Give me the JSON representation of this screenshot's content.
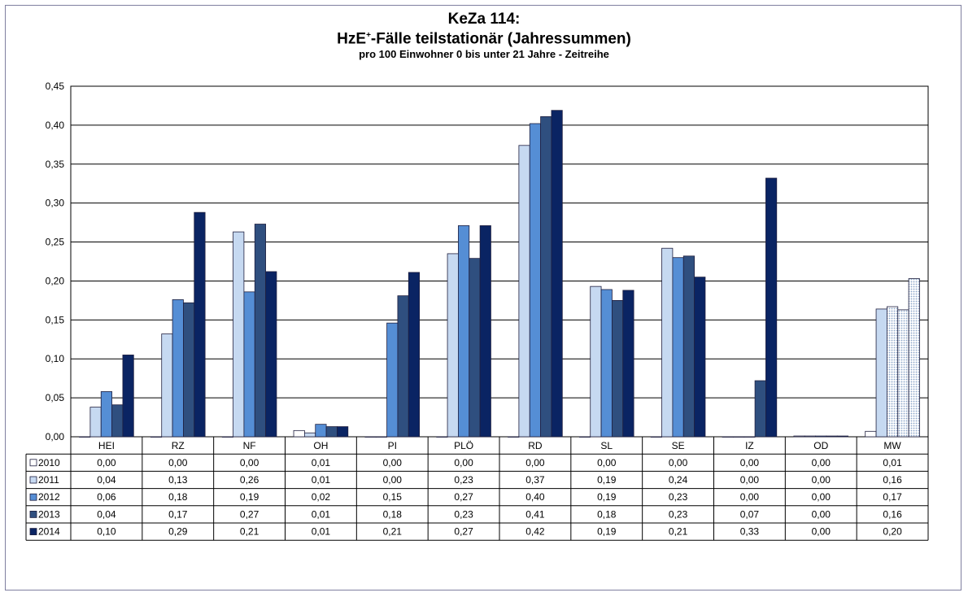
{
  "chart_data": {
    "type": "bar",
    "title": "KeZa 114:",
    "subtitle": "HzE",
    "subtitle_sup": "+",
    "subtitle_rest": "-Fälle teilstationär (Jahressummen)",
    "subtitle2": "pro 100 Einwohner 0 bis unter 21 Jahre - Zeitreihe",
    "categories": [
      "HEI",
      "RZ",
      "NF",
      "OH",
      "PI",
      "PLÖ",
      "RD",
      "SL",
      "SE",
      "IZ",
      "OD",
      "MW"
    ],
    "ylim": [
      0,
      0.45
    ],
    "yticks": [
      "0,00",
      "0,05",
      "0,10",
      "0,15",
      "0,20",
      "0,25",
      "0,30",
      "0,35",
      "0,40",
      "0,45"
    ],
    "grid": true,
    "legend": "data-table",
    "series": [
      {
        "name": "2010",
        "color": "#ffffff",
        "values": [
          0.0,
          0.0,
          0.0,
          0.008,
          0.0,
          0.0,
          0.0,
          0.0,
          0.0,
          0.0,
          0.001,
          0.007
        ],
        "labels": [
          "0,00",
          "0,00",
          "0,00",
          "0,01",
          "0,00",
          "0,00",
          "0,00",
          "0,00",
          "0,00",
          "0,00",
          "0,00",
          "0,01"
        ]
      },
      {
        "name": "2011",
        "color": "#c6d9f1",
        "values": [
          0.038,
          0.132,
          0.263,
          0.005,
          0.0,
          0.235,
          0.374,
          0.193,
          0.242,
          0.0,
          0.001,
          0.164
        ],
        "labels": [
          "0,04",
          "0,13",
          "0,26",
          "0,01",
          "0,00",
          "0,23",
          "0,37",
          "0,19",
          "0,24",
          "0,00",
          "0,00",
          "0,16"
        ]
      },
      {
        "name": "2012",
        "color": "#558ed5",
        "values": [
          0.058,
          0.176,
          0.186,
          0.016,
          0.146,
          0.271,
          0.402,
          0.189,
          0.23,
          0.0,
          0.001,
          0.167
        ],
        "labels": [
          "0,06",
          "0,18",
          "0,19",
          "0,02",
          "0,15",
          "0,27",
          "0,40",
          "0,19",
          "0,23",
          "0,00",
          "0,00",
          "0,17"
        ]
      },
      {
        "name": "2013",
        "color": "#2f4f7f",
        "values": [
          0.041,
          0.172,
          0.273,
          0.013,
          0.181,
          0.229,
          0.411,
          0.175,
          0.232,
          0.072,
          0.001,
          0.163
        ],
        "labels": [
          "0,04",
          "0,17",
          "0,27",
          "0,01",
          "0,18",
          "0,23",
          "0,41",
          "0,18",
          "0,23",
          "0,07",
          "0,00",
          "0,16"
        ]
      },
      {
        "name": "2014",
        "color": "#0a2463",
        "values": [
          0.105,
          0.288,
          0.212,
          0.013,
          0.211,
          0.271,
          0.419,
          0.188,
          0.205,
          0.332,
          0.001,
          0.203
        ],
        "labels": [
          "0,10",
          "0,29",
          "0,21",
          "0,01",
          "0,21",
          "0,27",
          "0,42",
          "0,19",
          "0,21",
          "0,33",
          "0,00",
          "0,20"
        ]
      }
    ]
  }
}
